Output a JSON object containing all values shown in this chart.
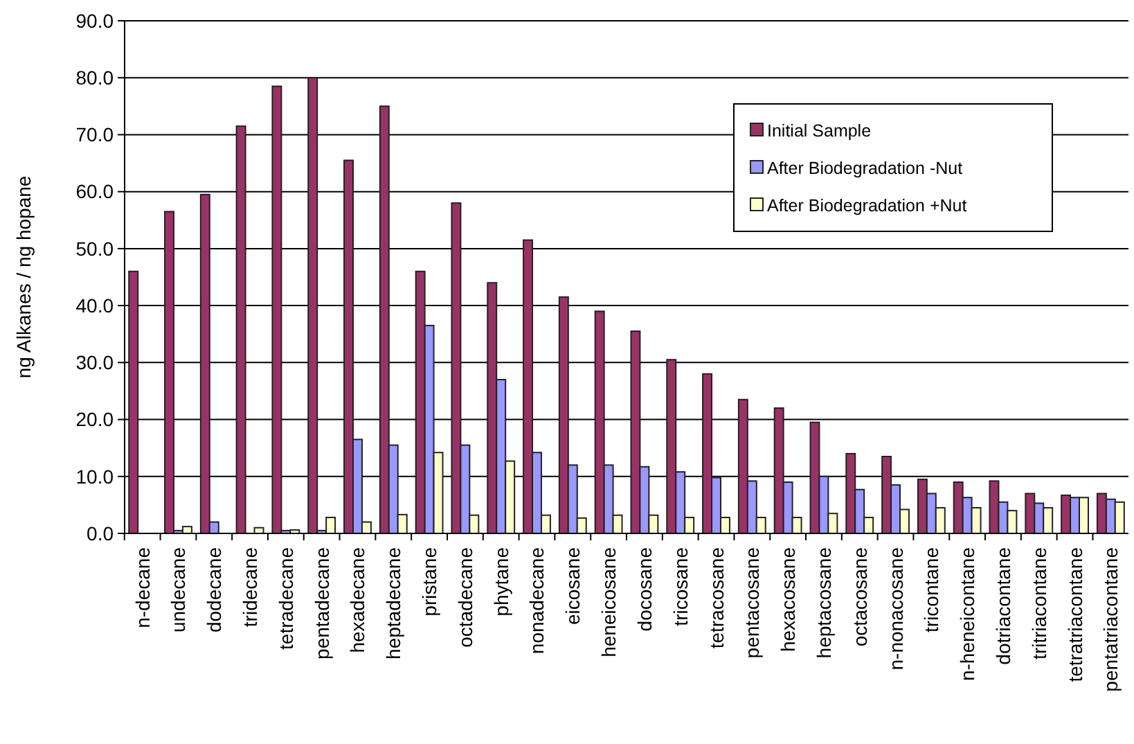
{
  "chart_data": {
    "type": "bar",
    "ylabel": "ng Alkanes / ng hopane",
    "categories": [
      "n-decane",
      "undecane",
      "dodecane",
      "tridecane",
      "tetradecane",
      "pentadecane",
      "hexadecane",
      "heptadecane",
      "pristane",
      "octadecane",
      "phytane",
      "nonadecane",
      "eicosane",
      "heneicosane",
      "docosane",
      "tricosane",
      "tetracosane",
      "pentacosane",
      "hexacosane",
      "heptacosane",
      "octacosane",
      "n-nonacosane",
      "tricontane",
      "n-heneicontane",
      "dotriacontane",
      "tritriacontane",
      "tetratriacontane",
      "pentatriacontane"
    ],
    "series": [
      {
        "name": "Initial Sample",
        "color": "#993366",
        "values": [
          46,
          56.5,
          59.5,
          71.5,
          78.5,
          80,
          65.5,
          75,
          46,
          58,
          44,
          51.5,
          41.5,
          39,
          35.5,
          30.5,
          28,
          23.5,
          22,
          19.5,
          14,
          13.5,
          9.5,
          9,
          9.2,
          7,
          6.7,
          7
        ]
      },
      {
        "name": "After Biodegradation -Nut",
        "color": "#9999ff",
        "values": [
          0,
          0.5,
          2,
          0,
          0.5,
          0.5,
          16.5,
          15.5,
          36.5,
          15.5,
          27,
          14.2,
          12,
          12,
          11.7,
          10.8,
          9.8,
          9.2,
          9,
          10,
          7.7,
          8.5,
          7,
          6.3,
          5.5,
          5.3,
          6.3,
          6
        ]
      },
      {
        "name": "After Biodegradation +Nut",
        "color": "#ffffcc",
        "values": [
          0,
          1.2,
          0,
          1,
          0.6,
          2.8,
          2,
          3.3,
          14.2,
          3.2,
          12.7,
          3.2,
          2.7,
          3.2,
          3.2,
          2.8,
          2.8,
          2.8,
          2.8,
          3.5,
          2.8,
          4.2,
          4.5,
          4.5,
          4,
          4.5,
          6.3,
          5.5
        ]
      }
    ],
    "ylim": [
      0,
      90
    ],
    "yticks": [
      {
        "value": 0,
        "label": "0.0"
      },
      {
        "value": 10,
        "label": "10.0"
      },
      {
        "value": 20,
        "label": "20.0"
      },
      {
        "value": 30,
        "label": "30.0"
      },
      {
        "value": 40,
        "label": "40.0"
      },
      {
        "value": 50,
        "label": "50.0"
      },
      {
        "value": 60,
        "label": "60.0"
      },
      {
        "value": 70,
        "label": "70.0"
      },
      {
        "value": 80,
        "label": "80.0"
      },
      {
        "value": 90,
        "label": "90.0"
      }
    ],
    "grid": "y",
    "legend": "top right"
  }
}
